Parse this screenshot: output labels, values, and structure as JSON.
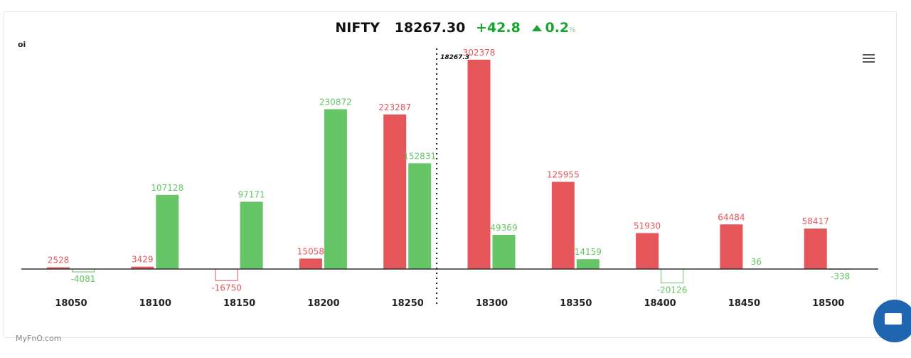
{
  "header": {
    "symbol": "NIFTY",
    "ltp": "18267.30",
    "change": "+42.8",
    "change_pct": "0.2",
    "pct_symbol": "%",
    "direction": "up"
  },
  "brand": "MyFnO.com",
  "menu_icon": "hamburger-menu-icon",
  "chat_icon": "chat-bubble-icon",
  "colors": {
    "call": "#e5565a",
    "put": "#66c566",
    "up": "#1aa531",
    "chat": "#1f65b0"
  },
  "chart_data": {
    "type": "bar",
    "ylabel": "oi",
    "categories": [
      "18050",
      "18100",
      "18150",
      "18200",
      "18250",
      "18300",
      "18350",
      "18400",
      "18450",
      "18500"
    ],
    "series": [
      {
        "color": "#e5565a",
        "values": [
          2528,
          3429,
          -16750,
          15058,
          223287,
          302378,
          125955,
          51930,
          64484,
          58417
        ]
      },
      {
        "color": "#66c566",
        "values": [
          -4081,
          107128,
          97171,
          230872,
          152831,
          49369,
          14159,
          -20126,
          36,
          -338
        ]
      }
    ],
    "spot": {
      "value": 18267.3,
      "label": "18267.3"
    },
    "grid": false
  }
}
